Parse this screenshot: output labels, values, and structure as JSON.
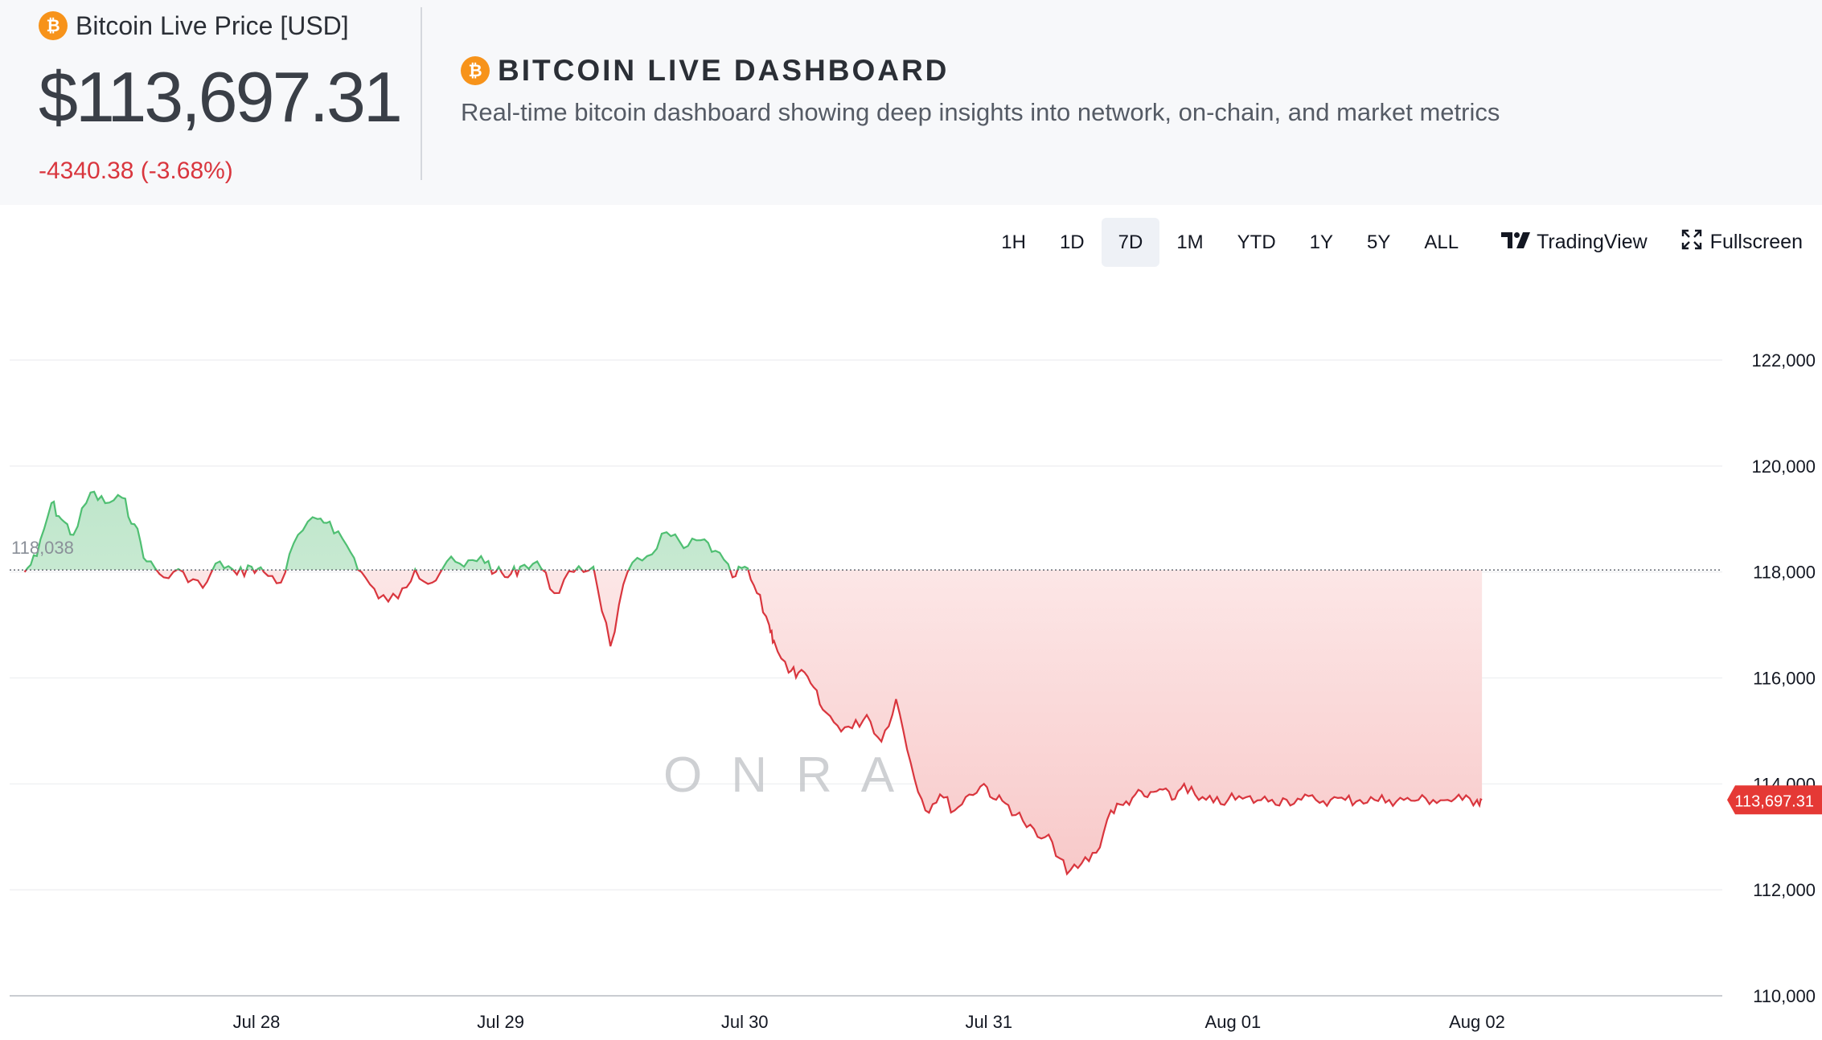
{
  "price_panel": {
    "icon": "bitcoin-icon",
    "title": "Bitcoin Live Price [USD]",
    "price": "$113,697.31",
    "change": "-4340.38 (-3.68%)"
  },
  "dashboard": {
    "icon": "bitcoin-icon",
    "title": "BITCOIN LIVE DASHBOARD",
    "subtitle": "Real-time bitcoin dashboard showing deep insights into network, on-chain, and market metrics"
  },
  "toolbar": {
    "timeframes": [
      "1H",
      "1D",
      "7D",
      "1M",
      "YTD",
      "1Y",
      "5Y",
      "ALL"
    ],
    "active_timeframe": "7D",
    "tradingview_label": "TradingView",
    "fullscreen_label": "Fullscreen"
  },
  "watermark": {
    "text": "ONRAMP"
  },
  "colors": {
    "up": "#4fbf72",
    "down": "#d9363e",
    "up_fill": "#d6f0de",
    "down_fill": "#fbd9d9",
    "last_price_tag": "#e53935"
  },
  "chart_data": {
    "type": "area",
    "title": "",
    "xlabel": "",
    "ylabel": "",
    "baseline_value": 118038,
    "baseline_label": "118,038",
    "last_value": 113697.31,
    "last_label": "113,697.31",
    "ylim": [
      110000,
      123000
    ],
    "y_ticks": [
      110000,
      112000,
      114000,
      116000,
      118000,
      120000,
      122000
    ],
    "y_tick_labels": [
      "110,000",
      "112,000",
      "114,000",
      "116,000",
      "118,000",
      "120,000",
      "122,000"
    ],
    "x_range": [
      27.05,
      33.02
    ],
    "x_ticks": [
      28,
      29,
      30,
      31,
      32,
      33
    ],
    "x_tick_labels": [
      "Jul 28",
      "Jul 29",
      "Jul 30",
      "Jul 31",
      "Aug 01",
      "Aug 02"
    ],
    "x_unit_note": "days since Jul 27 00:00 (Jul 28 = 28)",
    "series": [
      {
        "x": [
          27.05,
          27.1,
          27.16,
          27.2,
          27.25,
          27.32,
          27.38,
          27.45,
          27.5,
          27.55,
          27.62,
          27.7,
          27.78,
          27.85,
          27.92,
          27.98,
          28.03,
          28.1,
          28.17,
          28.25,
          28.3,
          28.37,
          28.43,
          28.5,
          28.58,
          28.65,
          28.72,
          28.78,
          28.85,
          28.92,
          28.98,
          29.03,
          29.08,
          29.15,
          29.22,
          29.3,
          29.38,
          29.45,
          29.52,
          29.6,
          29.68,
          29.75,
          29.82,
          29.88,
          29.95,
          30.0,
          30.05,
          30.1,
          30.12,
          30.18,
          30.22,
          30.27,
          30.32,
          30.38,
          30.44,
          30.5,
          30.56,
          30.62,
          30.68,
          30.74,
          30.8,
          30.86,
          30.92,
          30.98,
          31.03,
          31.08,
          31.14,
          31.2,
          31.26,
          31.32,
          31.38,
          31.44,
          31.5,
          31.55,
          31.6,
          31.65,
          31.7,
          31.75,
          31.8,
          31.86,
          31.92,
          31.98,
          32.04,
          32.1,
          32.16,
          32.22,
          32.28,
          32.34,
          32.4,
          32.46,
          32.52,
          32.58,
          32.64,
          32.7,
          32.76,
          32.82,
          32.88,
          32.94,
          33.0,
          33.02
        ],
        "y": [
          118000,
          118300,
          119300,
          119000,
          118700,
          119500,
          119300,
          119400,
          118900,
          118200,
          117900,
          118000,
          117700,
          118200,
          117950,
          118100,
          118000,
          117800,
          118700,
          119000,
          118950,
          118500,
          118000,
          117500,
          117500,
          118050,
          117800,
          118200,
          118100,
          118300,
          118000,
          117900,
          118100,
          118200,
          117600,
          118000,
          118100,
          116600,
          118000,
          118300,
          118750,
          118450,
          118600,
          118400,
          117900,
          118100,
          117600,
          117000,
          116700,
          116100,
          116100,
          115900,
          115400,
          115100,
          115050,
          115300,
          114800,
          115600,
          114400,
          113500,
          113800,
          113500,
          113800,
          114000,
          113700,
          113600,
          113300,
          113000,
          112900,
          112300,
          112500,
          112700,
          113500,
          113600,
          113800,
          113750,
          113900,
          113700,
          114000,
          113697,
          113650,
          113700,
          113720,
          113690,
          113700,
          113700,
          113700,
          113697,
          113697,
          113697,
          113697,
          113697,
          113697,
          113697,
          113697,
          113697,
          113697,
          113697,
          113697,
          113697.31
        ]
      }
    ]
  }
}
